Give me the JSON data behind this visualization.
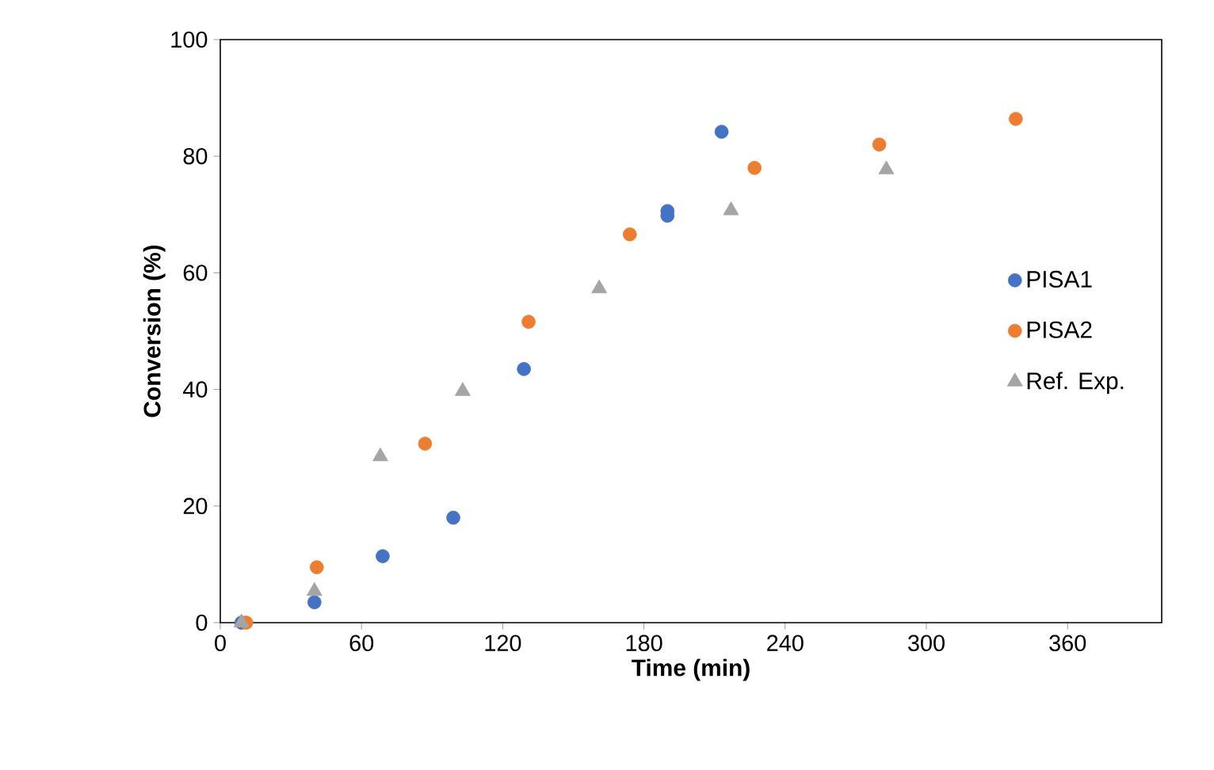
{
  "chart_data": {
    "type": "scatter",
    "xlabel": "Time (min)",
    "ylabel": "Conversion (%)",
    "xlim": [
      0,
      400
    ],
    "ylim": [
      0,
      100
    ],
    "xticks": [
      0,
      60,
      120,
      180,
      240,
      300,
      360
    ],
    "yticks": [
      0,
      20,
      40,
      60,
      80,
      100
    ],
    "legend": "right",
    "grid": false,
    "series": [
      {
        "name": "PISA1",
        "color": "#4472c4",
        "marker": "circle",
        "x": [
          9,
          40,
          69,
          99,
          129,
          190,
          190,
          213
        ],
        "values": [
          0,
          3.5,
          11.4,
          18,
          43.5,
          69.8,
          70.6,
          84.2
        ]
      },
      {
        "name": "PISA2",
        "color": "#ed7d31",
        "marker": "circle",
        "x": [
          11,
          41,
          87,
          131,
          174,
          227,
          280,
          338
        ],
        "values": [
          0,
          9.5,
          30.7,
          51.6,
          66.6,
          78,
          82,
          86.4
        ]
      },
      {
        "name": "Ref. Exp.",
        "color": "#a5a5a5",
        "marker": "triangle",
        "x": [
          9,
          40,
          68,
          103,
          161,
          217,
          283
        ],
        "values": [
          0,
          5.4,
          28.5,
          39.7,
          57.3,
          70.7,
          77.7
        ]
      }
    ]
  }
}
